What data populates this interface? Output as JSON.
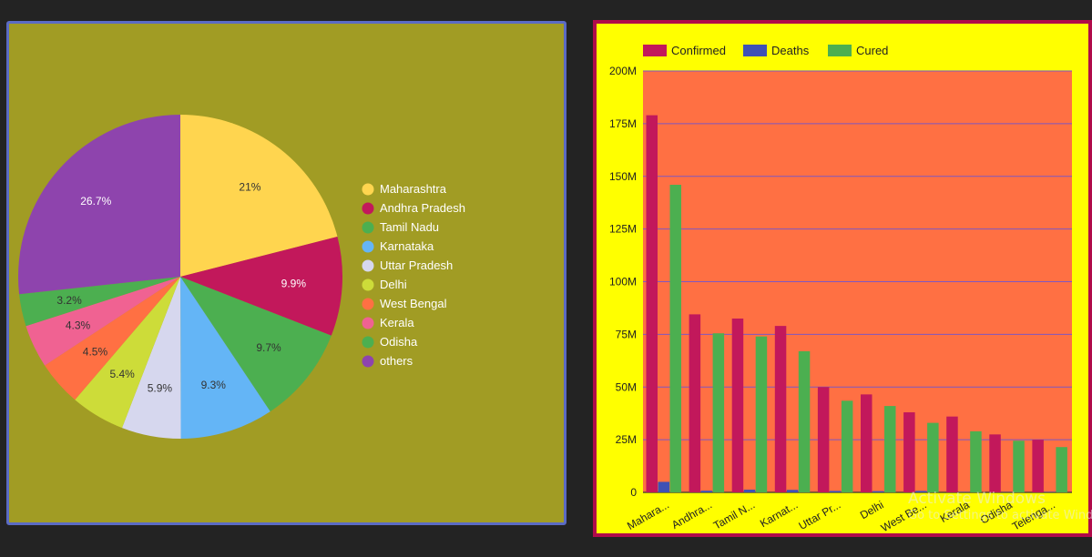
{
  "pie_chart": {
    "legend_labels": [
      "Maharashtra",
      "Andhra Pradesh",
      "Tamil Nadu",
      "Karnataka",
      "Uttar Pradesh",
      "Delhi",
      "West Bengal",
      "Kerala",
      "Odisha",
      "others"
    ]
  },
  "chart_data": [
    {
      "type": "pie",
      "labels": [
        "Maharashtra",
        "Andhra Pradesh",
        "Tamil Nadu",
        "Karnataka",
        "Uttar Pradesh",
        "Delhi",
        "West Bengal",
        "Kerala",
        "Odisha",
        "others"
      ],
      "values": [
        21,
        9.9,
        9.7,
        9.3,
        5.9,
        5.4,
        4.5,
        4.3,
        3.2,
        26.7
      ],
      "value_labels": [
        "21%",
        "9.9%",
        "9.7%",
        "9.3%",
        "5.9%",
        "5.4%",
        "4.5%",
        "4.3%",
        "3.2%",
        "26.7%"
      ],
      "colors": [
        "#ffd54f",
        "#c2185b",
        "#4caf50",
        "#64b5f6",
        "#d6d7ee",
        "#cddc39",
        "#ff7043",
        "#f06292",
        "#4caf50",
        "#8e44ad"
      ],
      "legend": "right"
    },
    {
      "type": "bar",
      "categories": [
        "Mahara...",
        "Andhra...",
        "Tamil N...",
        "Karnat...",
        "Uttar Pr...",
        "Delhi",
        "West Be...",
        "Kerala",
        "Odisha",
        "Telenga..."
      ],
      "series": [
        {
          "name": "Confirmed",
          "color": "#c2185b",
          "values": [
            179,
            84.5,
            82.5,
            79,
            50,
            46.5,
            38,
            36,
            27.5,
            25
          ]
        },
        {
          "name": "Deaths",
          "color": "#3f51b5",
          "values": [
            5,
            0.8,
            1.3,
            1.2,
            0.7,
            0.6,
            0.7,
            0.2,
            0.1,
            0.2
          ]
        },
        {
          "name": "Cured",
          "color": "#4caf50",
          "values": [
            146,
            75.5,
            74,
            67,
            43.5,
            41,
            33,
            29,
            24.5,
            21.5
          ]
        }
      ],
      "yticks": [
        "0",
        "25M",
        "50M",
        "75M",
        "100M",
        "125M",
        "150M",
        "175M",
        "200M"
      ],
      "ylim": [
        0,
        200
      ],
      "legend": "top-left",
      "grid": true,
      "plot_bg": "#ff7043",
      "gridline_color": "#7e57c2"
    }
  ],
  "watermark": {
    "line1": "Activate Windows",
    "line2": "Go to Settings to activate Windows."
  }
}
